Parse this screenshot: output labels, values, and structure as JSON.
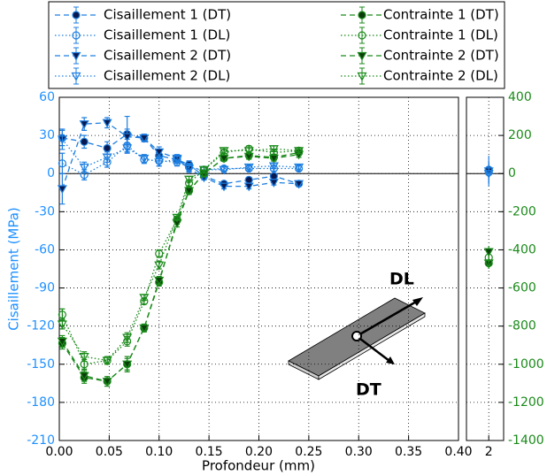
{
  "chart_data": {
    "type": "errorbar_line",
    "xlabel": "Profondeur (mm)",
    "ylabel": "Cisaillement (MPa)",
    "xlim": [
      0,
      0.4
    ],
    "xticks": [
      {
        "value": 0,
        "label": "0.00"
      },
      0.05,
      {
        "value": 0.1,
        "label": "0.10"
      },
      0.15,
      {
        "value": 0.2,
        "label": "0.20"
      },
      0.25,
      {
        "value": 0.3,
        "label": "0.30"
      },
      0.35,
      {
        "value": 0.4,
        "label": "0.40"
      }
    ],
    "side_xlim": [
      1.4,
      2.4
    ],
    "side_xticks": [
      2
    ],
    "ylim": [
      -210,
      60
    ],
    "yticks": [
      60,
      30,
      0,
      -30,
      -60,
      -90,
      -120,
      -150,
      -180,
      -210
    ],
    "y2lim": [
      -1400,
      400
    ],
    "y2ticks": [
      400,
      200,
      0,
      -200,
      -400,
      -600,
      -800,
      -1000,
      -1200,
      -1400
    ],
    "grid": true,
    "x": [
      0.003,
      0.025,
      0.048,
      0.068,
      0.085,
      0.1,
      0.118,
      0.13,
      0.145,
      0.165,
      0.19,
      0.215,
      0.24
    ],
    "series": [
      {
        "name": "Cisaillement 1 (DT)",
        "color": "#1e7fe0",
        "marker": "circle",
        "filled": true,
        "linestyle": "dashed",
        "values": [
          28,
          25,
          20,
          31,
          28,
          14,
          11,
          7,
          -2,
          -8,
          -5,
          -2,
          -8
        ],
        "errors": [
          6,
          5,
          5,
          14,
          3,
          4,
          3,
          3,
          3,
          2,
          2,
          2,
          2
        ],
        "side_x": 2,
        "side_value": 3
      },
      {
        "name": "Cisaillement 1 (DL)",
        "color": "#1e7fe0",
        "marker": "circle",
        "filled": false,
        "linestyle": "dotted",
        "values": [
          8,
          -1,
          9,
          22,
          11,
          10,
          9,
          5,
          3,
          4,
          4,
          4,
          4
        ],
        "errors": [
          8,
          4,
          4,
          5,
          3,
          4,
          3,
          3,
          2,
          2,
          2,
          2,
          2
        ],
        "side_x": 2,
        "side_value": 1
      },
      {
        "name": "Cisaillement 2 (DT)",
        "color": "#1e7fe0",
        "marker": "triangle",
        "filled": true,
        "linestyle": "dashed",
        "values": [
          -12,
          39,
          40,
          29,
          28,
          17,
          12,
          4,
          -3,
          -10,
          -10,
          -7,
          -8
        ],
        "errors": [
          12,
          5,
          4,
          6,
          3,
          4,
          3,
          3,
          2,
          2,
          2,
          2,
          2
        ],
        "side_x": 2,
        "side_value": 2
      },
      {
        "name": "Cisaillement 2 (DL)",
        "color": "#1e7fe0",
        "marker": "triangle",
        "filled": false,
        "linestyle": "dotted",
        "values": [
          27,
          5,
          13,
          20,
          12,
          9,
          11,
          4,
          3,
          3,
          5,
          6,
          5
        ],
        "errors": [
          8,
          4,
          4,
          4,
          3,
          3,
          3,
          2,
          2,
          2,
          2,
          2,
          2
        ],
        "side_x": 2,
        "side_value": 0
      },
      {
        "name": "Contrainte 1 (DT)",
        "color": "#1a8a1a",
        "marker": "circle",
        "filled": true,
        "linestyle": "dashed",
        "axis": "y2",
        "values": [
          -890,
          -1070,
          -1090,
          -1000,
          -810,
          -570,
          -245,
          -90,
          0,
          80,
          95,
          85,
          110
        ],
        "errors": [
          30,
          30,
          25,
          40,
          20,
          20,
          20,
          20,
          15,
          15,
          15,
          15,
          15
        ],
        "side_x": 2,
        "side_value": -470
      },
      {
        "name": "Contrainte 1 (DL)",
        "color": "#1a8a1a",
        "marker": "circle",
        "filled": false,
        "linestyle": "dotted",
        "axis": "y2",
        "values": [
          -740,
          -1000,
          -980,
          -880,
          -670,
          -420,
          -240,
          -50,
          20,
          110,
          130,
          110,
          120
        ],
        "errors": [
          30,
          25,
          20,
          25,
          15,
          20,
          15,
          15,
          15,
          15,
          15,
          15,
          15
        ],
        "side_x": 2,
        "side_value": -440
      },
      {
        "name": "Contrainte 2 (DT)",
        "color": "#1a8a1a",
        "marker": "triangle",
        "filled": true,
        "linestyle": "dashed",
        "axis": "y2",
        "values": [
          -880,
          -1060,
          -1090,
          -1000,
          -810,
          -560,
          -260,
          -90,
          0,
          80,
          90,
          80,
          100
        ],
        "errors": [
          30,
          30,
          25,
          30,
          20,
          20,
          20,
          15,
          15,
          15,
          15,
          15,
          15
        ],
        "side_x": 2,
        "side_value": -410
      },
      {
        "name": "Contrainte 2 (DL)",
        "color": "#1a8a1a",
        "marker": "triangle",
        "filled": false,
        "linestyle": "dotted",
        "axis": "y2",
        "values": [
          -790,
          -960,
          -980,
          -860,
          -650,
          -480,
          -230,
          -30,
          20,
          120,
          120,
          130,
          120
        ],
        "errors": [
          25,
          25,
          20,
          25,
          15,
          20,
          15,
          15,
          15,
          15,
          15,
          15,
          15
        ],
        "side_x": 2,
        "side_value": -470
      }
    ],
    "annotations": [
      "DL",
      "DT"
    ]
  }
}
